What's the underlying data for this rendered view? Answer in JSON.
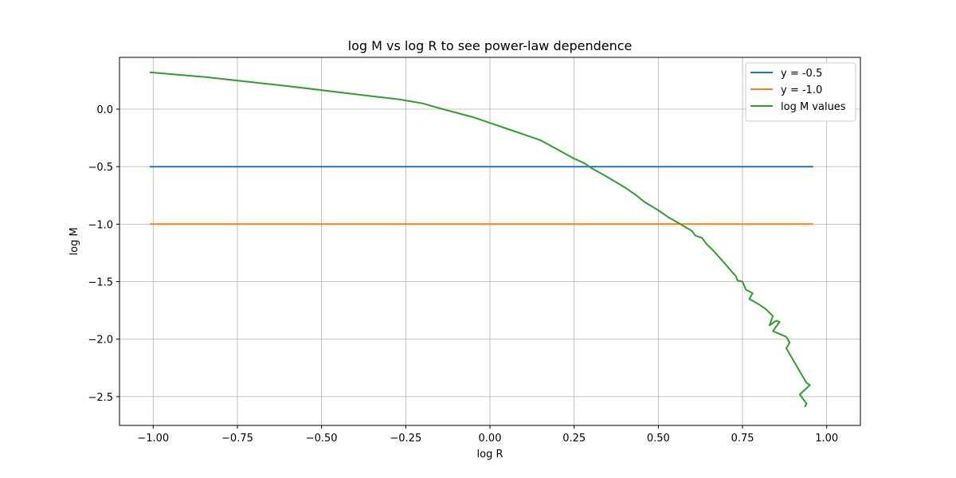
{
  "chart_data": {
    "type": "line",
    "title": "log M vs log R to see power-law dependence",
    "xlabel": "log R",
    "ylabel": "log M",
    "xlim": [
      -1.1,
      1.1
    ],
    "ylim": [
      -2.75,
      0.45
    ],
    "grid": true,
    "legend_position": "top-right",
    "xticks": [
      -1.0,
      -0.75,
      -0.5,
      -0.25,
      0.0,
      0.25,
      0.5,
      0.75,
      1.0
    ],
    "xtick_labels": [
      "−1.00",
      "−0.75",
      "−0.50",
      "−0.25",
      "0.00",
      "0.25",
      "0.50",
      "0.75",
      "1.00"
    ],
    "yticks": [
      0.0,
      -0.5,
      -1.0,
      -1.5,
      -2.0,
      -2.5
    ],
    "ytick_labels": [
      "0.0",
      "−0.5",
      "−1.0",
      "−1.5",
      "−2.0",
      "−2.5"
    ],
    "series": [
      {
        "name": "y = -0.5",
        "color": "#1f77b4",
        "x": [
          -1.01,
          0.96
        ],
        "y": [
          -0.5,
          -0.5
        ]
      },
      {
        "name": "y = -1.0",
        "color": "#ff7f0e",
        "x": [
          -1.01,
          0.96
        ],
        "y": [
          -1.0,
          -1.0
        ]
      },
      {
        "name": "log M values",
        "color": "#2ca02c",
        "x": [
          -1.01,
          -0.85,
          -0.6,
          -0.4,
          -0.27,
          -0.2,
          -0.14,
          -0.05,
          0.0,
          0.05,
          0.1,
          0.13,
          0.15,
          0.2,
          0.25,
          0.28,
          0.3,
          0.33,
          0.36,
          0.4,
          0.43,
          0.46,
          0.5,
          0.53,
          0.56,
          0.6,
          0.61,
          0.63,
          0.645,
          0.66,
          0.7,
          0.72,
          0.73,
          0.735,
          0.75,
          0.76,
          0.78,
          0.77,
          0.8,
          0.81,
          0.82,
          0.84,
          0.83,
          0.85,
          0.86,
          0.84,
          0.88,
          0.89,
          0.88,
          0.94,
          0.95,
          0.92,
          0.94,
          0.935
        ],
        "y": [
          0.32,
          0.28,
          0.2,
          0.13,
          0.085,
          0.05,
          0.0,
          -0.07,
          -0.12,
          -0.17,
          -0.22,
          -0.25,
          -0.27,
          -0.35,
          -0.43,
          -0.47,
          -0.51,
          -0.56,
          -0.61,
          -0.68,
          -0.74,
          -0.81,
          -0.88,
          -0.94,
          -0.99,
          -1.06,
          -1.1,
          -1.12,
          -1.18,
          -1.22,
          -1.35,
          -1.42,
          -1.45,
          -1.49,
          -1.5,
          -1.57,
          -1.6,
          -1.65,
          -1.7,
          -1.72,
          -1.74,
          -1.8,
          -1.88,
          -1.84,
          -1.85,
          -1.93,
          -1.98,
          -2.03,
          -2.08,
          -2.38,
          -2.4,
          -2.48,
          -2.56,
          -2.59
        ]
      }
    ]
  }
}
